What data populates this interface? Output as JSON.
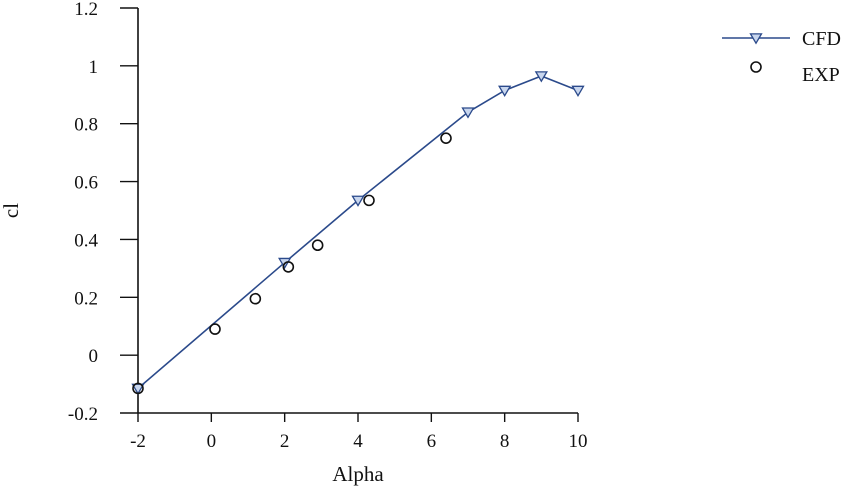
{
  "chart_data": {
    "type": "line",
    "xlabel": "Alpha",
    "ylabel": "cl",
    "xlim": [
      -2,
      10
    ],
    "ylim": [
      -0.2,
      1.2
    ],
    "xticks": [
      -2,
      0,
      2,
      4,
      6,
      8,
      10
    ],
    "yticks": [
      -0.2,
      0,
      0.2,
      0.4,
      0.6,
      0.8,
      1,
      1.2
    ],
    "xtick_labels": [
      "-2",
      "0",
      "2",
      "4",
      "6",
      "8",
      "10"
    ],
    "ytick_labels": [
      "-0.2",
      "0",
      "0.2",
      "0.4",
      "0.6",
      "0.8",
      "1",
      "1.2"
    ],
    "grid": false,
    "legend_position": "top-right",
    "series": [
      {
        "name": "CFD",
        "style": "line-with-triangle-down-markers",
        "color": "#2b4a8b",
        "marker_fill": "#c8d6ee",
        "x": [
          -2,
          2,
          4,
          7,
          8,
          9,
          10
        ],
        "y": [
          -0.115,
          0.32,
          0.535,
          0.84,
          0.915,
          0.965,
          0.915
        ]
      },
      {
        "name": "EXP",
        "style": "circle-markers",
        "color": "#111111",
        "x": [
          -2,
          0.1,
          1.2,
          2.1,
          2.9,
          4.3,
          6.4
        ],
        "y": [
          -0.115,
          0.09,
          0.195,
          0.305,
          0.38,
          0.535,
          0.75
        ]
      }
    ]
  }
}
